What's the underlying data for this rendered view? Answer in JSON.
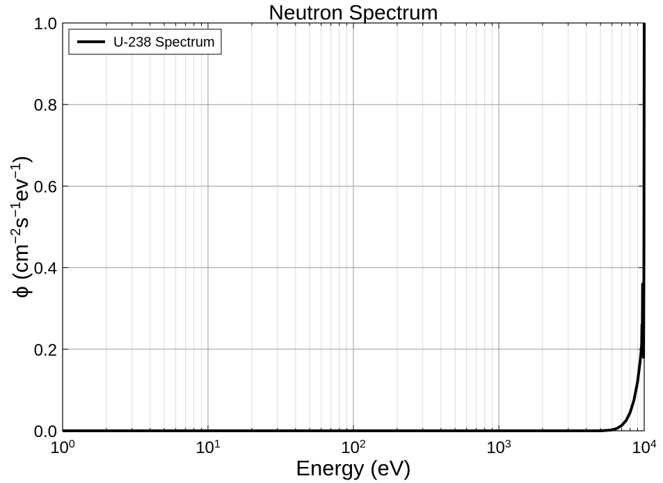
{
  "chart_data": {
    "type": "line",
    "title": "Neutron Spectrum",
    "xlabel": "Energy (eV)",
    "ylabel": {
      "prefix": "ϕ (cm",
      "exp1": "−2",
      "mid": "s",
      "exp2": "−1",
      "mid2": "ev",
      "exp3": "−1",
      "suffix": ")"
    },
    "x_scale": "log",
    "xlim": [
      1,
      10000
    ],
    "ylim": [
      0.0,
      1.0
    ],
    "grid": true,
    "legend_position": "top-left",
    "x_ticks": [
      {
        "value": 1,
        "base": "10",
        "exp": "0"
      },
      {
        "value": 10,
        "base": "10",
        "exp": "1"
      },
      {
        "value": 100,
        "base": "10",
        "exp": "2"
      },
      {
        "value": 1000,
        "base": "10",
        "exp": "3"
      },
      {
        "value": 10000,
        "base": "10",
        "exp": "4"
      }
    ],
    "y_ticks": [
      "0.0",
      "0.2",
      "0.4",
      "0.6",
      "0.8",
      "1.0"
    ],
    "series": [
      {
        "name": "U-238 Spectrum",
        "color": "#000000",
        "x": [
          1,
          10,
          100,
          1000,
          3000,
          5000,
          6000,
          6500,
          7000,
          7500,
          8000,
          8500,
          9000,
          9300,
          9500,
          9600,
          9650,
          9700,
          9750,
          9800,
          9850,
          9900,
          9950,
          10000
        ],
        "y": [
          0.0,
          0.0,
          0.0,
          0.0,
          0.0,
          0.0,
          0.002,
          0.006,
          0.013,
          0.025,
          0.045,
          0.075,
          0.12,
          0.16,
          0.19,
          0.21,
          0.26,
          0.23,
          0.36,
          0.25,
          0.3,
          0.18,
          0.4,
          1.0
        ]
      }
    ]
  }
}
